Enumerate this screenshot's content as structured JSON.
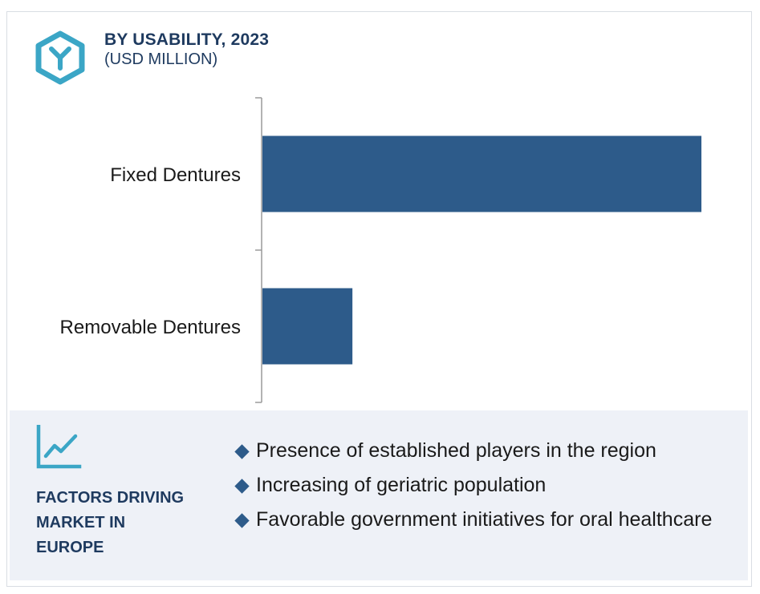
{
  "header": {
    "title": "BY USABILITY, 2023",
    "subtitle": "(USD MILLION)",
    "logo_icon": "hexagon-y-icon"
  },
  "colors": {
    "bar": "#2d5b8a",
    "title": "#1e3a5f",
    "logo": "#3ba6c6",
    "panel_bg": "#eef1f7"
  },
  "chart_data": {
    "type": "bar",
    "orientation": "horizontal",
    "categories": [
      "Fixed Dentures",
      "Removable Dentures"
    ],
    "values": [
      100,
      20.5
    ],
    "value_note": "relative bar lengths; no numeric axis shown",
    "title": "BY USABILITY, 2023",
    "subtitle": "(USD MILLION)",
    "grid": false,
    "legend": "none"
  },
  "factors": {
    "icon": "trend-chart-icon",
    "title_lines": [
      "FACTORS DRIVING",
      "MARKET IN",
      "EUROPE"
    ],
    "items": [
      "Presence of established players in the region",
      "Increasing of geriatric population",
      "Favorable government initiatives for oral healthcare"
    ]
  }
}
